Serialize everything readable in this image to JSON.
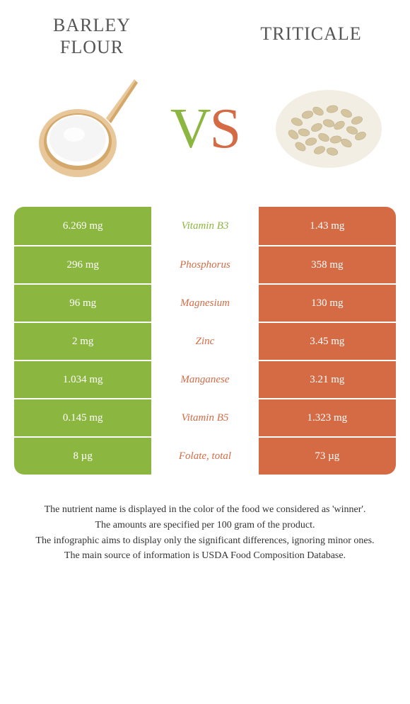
{
  "colors": {
    "left": "#8bb63f",
    "right": "#d46b45",
    "title": "#555555",
    "footnote": "#333333",
    "background": "#ffffff"
  },
  "foods": {
    "left": {
      "name": "Barley flour"
    },
    "right": {
      "name": "Triticale"
    }
  },
  "vs": {
    "v": "V",
    "s": "S"
  },
  "nutrients": [
    {
      "label": "Vitamin B3",
      "left": "6.269 mg",
      "right": "1.43 mg",
      "winner": "left"
    },
    {
      "label": "Phosphorus",
      "left": "296 mg",
      "right": "358 mg",
      "winner": "right"
    },
    {
      "label": "Magnesium",
      "left": "96 mg",
      "right": "130 mg",
      "winner": "right"
    },
    {
      "label": "Zinc",
      "left": "2 mg",
      "right": "3.45 mg",
      "winner": "right"
    },
    {
      "label": "Manganese",
      "left": "1.034 mg",
      "right": "3.21 mg",
      "winner": "right"
    },
    {
      "label": "Vitamin B5",
      "left": "0.145 mg",
      "right": "1.323 mg",
      "winner": "right"
    },
    {
      "label": "Folate, total",
      "left": "8 µg",
      "right": "73 µg",
      "winner": "right"
    }
  ],
  "footnotes": [
    "The nutrient name is displayed in the color of the food we considered as 'winner'.",
    "The amounts are specified per 100 gram of the product.",
    "The infographic aims to display only the significant differences, ignoring minor ones.",
    "The main source of information is USDA Food Composition Database."
  ]
}
